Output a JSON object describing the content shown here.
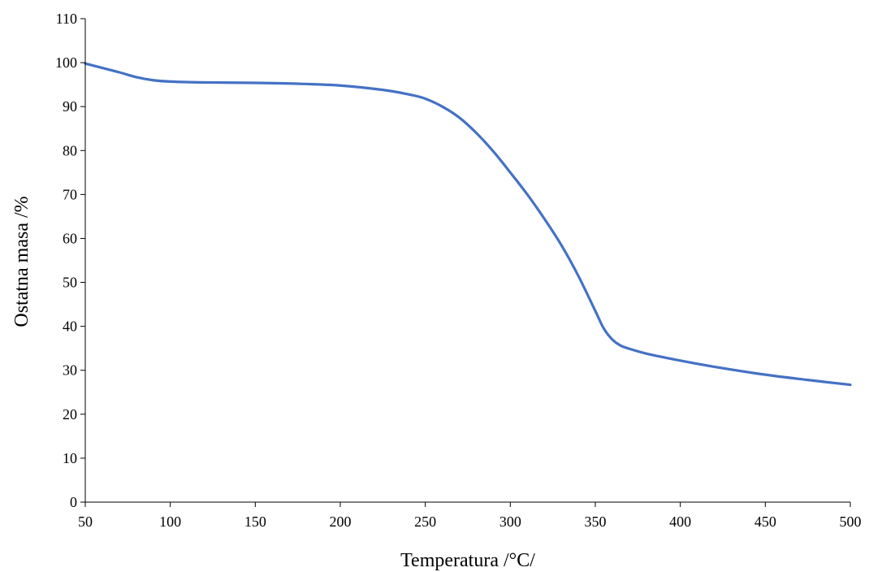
{
  "chart_data": {
    "type": "line",
    "xlabel": "Temperatura /°C/",
    "ylabel": "Ostatna masa /%",
    "xlim": [
      50,
      500
    ],
    "ylim": [
      0,
      110
    ],
    "xticks": [
      50,
      100,
      150,
      200,
      250,
      300,
      350,
      400,
      450,
      500
    ],
    "yticks": [
      0,
      10,
      20,
      30,
      40,
      50,
      60,
      70,
      80,
      90,
      100,
      110
    ],
    "grid": false,
    "legend": "none",
    "series": [
      {
        "color": "#4472C4",
        "points": [
          [
            50,
            99.8
          ],
          [
            60,
            98.8
          ],
          [
            70,
            97.8
          ],
          [
            80,
            96.7
          ],
          [
            90,
            96.0
          ],
          [
            100,
            95.7
          ],
          [
            120,
            95.5
          ],
          [
            150,
            95.4
          ],
          [
            175,
            95.2
          ],
          [
            200,
            94.8
          ],
          [
            225,
            93.8
          ],
          [
            240,
            92.8
          ],
          [
            250,
            91.8
          ],
          [
            260,
            90.0
          ],
          [
            270,
            87.5
          ],
          [
            280,
            84.0
          ],
          [
            290,
            79.8
          ],
          [
            300,
            75.0
          ],
          [
            310,
            70.0
          ],
          [
            320,
            64.5
          ],
          [
            330,
            58.5
          ],
          [
            340,
            51.5
          ],
          [
            350,
            43.5
          ],
          [
            355,
            39.5
          ],
          [
            360,
            37.0
          ],
          [
            365,
            35.6
          ],
          [
            370,
            34.9
          ],
          [
            380,
            33.8
          ],
          [
            400,
            32.2
          ],
          [
            420,
            30.8
          ],
          [
            450,
            29.0
          ],
          [
            475,
            27.8
          ],
          [
            500,
            26.7
          ]
        ]
      }
    ]
  }
}
